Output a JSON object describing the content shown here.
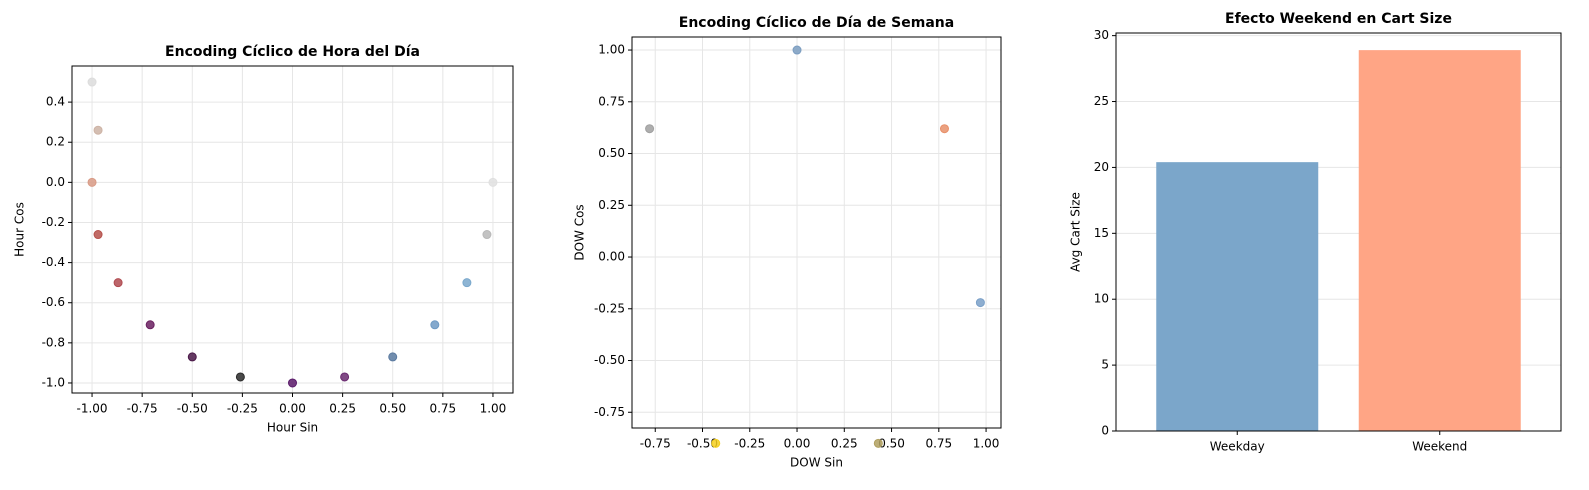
{
  "chart_data": [
    {
      "type": "scatter",
      "title": "Encoding Cíclico de Hora del Día",
      "xlabel": "Hour Sin",
      "ylabel": "Hour Cos",
      "x": [
        -1.0,
        -0.97,
        -1.0,
        -0.97,
        -0.87,
        -0.71,
        -0.5,
        -0.26,
        0.0,
        0.26,
        0.5,
        0.71,
        0.87,
        0.97,
        1.0
      ],
      "y": [
        0.5,
        0.26,
        0.0,
        -0.26,
        -0.5,
        -0.71,
        -0.87,
        -0.97,
        -1.0,
        -0.97,
        -0.87,
        -0.71,
        -0.5,
        -0.26,
        0.0
      ],
      "colors": [
        "#dcdcdc",
        "#cdb3a5",
        "#d89a85",
        "#b5504a",
        "#b04a50",
        "#6a2060",
        "#4a1848",
        "#2a2a2a",
        "#5a1a6a",
        "#6a2a70",
        "#5a7aa0",
        "#6e9ac4",
        "#7aa8cc",
        "#b8b8b8",
        "#e0e0e0"
      ],
      "xlim": [
        -1.1,
        1.1
      ],
      "ylim": [
        -1.05,
        0.58
      ],
      "xticks": [
        {
          "value": -1.0,
          "label": "-1.00"
        },
        -0.75,
        {
          "value": -0.5,
          "label": "-0.50"
        },
        -0.25,
        {
          "value": 0,
          "label": "0.00"
        },
        0.25,
        {
          "value": 0.5,
          "label": "0.50"
        },
        0.75,
        {
          "value": 1.0,
          "label": "1.00"
        }
      ],
      "yticks": [
        {
          "value": -1.0,
          "label": "-1.0"
        },
        -0.8,
        -0.6,
        -0.4,
        -0.2,
        {
          "value": 0,
          "label": "0.0"
        },
        0.2,
        0.4
      ],
      "grid": "both"
    },
    {
      "type": "scatter",
      "title": "Encoding Cíclico de Día de Semana",
      "xlabel": "DOW Sin",
      "ylabel": "DOW Cos",
      "x": [
        0.0,
        0.78,
        -0.78,
        0.97,
        -0.43,
        0.43
      ],
      "y": [
        1.0,
        0.62,
        0.62,
        -0.22,
        -0.9,
        -0.9
      ],
      "colors": [
        "#7a9cc0",
        "#e8906a",
        "#a0a0a0",
        "#7aa0c8",
        "#f5d020",
        "#b0a060"
      ],
      "xlim": [
        -0.873,
        1.079
      ],
      "ylim": [
        -0.826,
        1.063
      ],
      "xticks": [
        -0.75,
        {
          "value": -0.5,
          "label": "-0.50"
        },
        -0.25,
        {
          "value": 0,
          "label": "0.00"
        },
        0.25,
        {
          "value": 0.5,
          "label": "0.50"
        },
        0.75,
        {
          "value": 1.0,
          "label": "1.00"
        }
      ],
      "yticks": [
        -0.75,
        {
          "value": -0.5,
          "label": "-0.50"
        },
        -0.25,
        {
          "value": 0,
          "label": "0.00"
        },
        0.25,
        {
          "value": 0.5,
          "label": "0.50"
        },
        0.75,
        {
          "value": 1.0,
          "label": "1.00"
        }
      ],
      "grid": "both"
    },
    {
      "type": "bar",
      "title": "Efecto Weekend en Cart Size",
      "ylabel": "Avg Cart Size",
      "categories": [
        "Weekday",
        "Weekend"
      ],
      "values": [
        20.4,
        28.9
      ],
      "colors": [
        "#7ba6ca",
        "#ffa585"
      ],
      "ylim": [
        0,
        30.2
      ],
      "yticks": [
        0,
        5,
        10,
        15,
        20,
        25,
        30
      ],
      "grid": "y"
    }
  ]
}
